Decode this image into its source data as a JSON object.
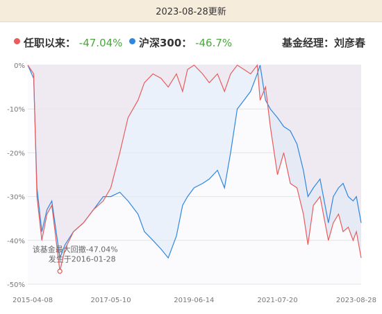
{
  "header": {
    "title": "2023-08-28更新"
  },
  "legend": {
    "fund_label": "任职以来：",
    "fund_value": "-47.04%",
    "index_label": "沪深300：",
    "index_value": "-46.7%",
    "manager": "基金经理：刘彦春"
  },
  "colors": {
    "fund": "#e85c5c",
    "index": "#2f86e0",
    "positive": "#49a83b"
  },
  "chart_data": {
    "type": "line",
    "xlabel": "",
    "ylabel": "",
    "ylim": [
      -50,
      0
    ],
    "yticks": [
      "0%",
      "-10%",
      "-20%",
      "-30%",
      "-40%",
      "-50%"
    ],
    "xticks": [
      "2015-04-08",
      "2017-05-10",
      "2019-06-14",
      "2021-07-20",
      "2023-08-28"
    ],
    "x": [
      "2015-04-08",
      "2015-06-01",
      "2015-07-01",
      "2015-08-15",
      "2015-10-01",
      "2015-11-15",
      "2016-01-28",
      "2016-03-15",
      "2016-06-01",
      "2016-09-01",
      "2016-12-01",
      "2017-03-01",
      "2017-05-10",
      "2017-08-01",
      "2017-10-15",
      "2018-01-15",
      "2018-03-15",
      "2018-06-01",
      "2018-08-15",
      "2018-10-20",
      "2019-01-03",
      "2019-03-01",
      "2019-04-15",
      "2019-06-14",
      "2019-09-01",
      "2019-11-01",
      "2020-01-15",
      "2020-03-20",
      "2020-05-15",
      "2020-07-15",
      "2020-09-15",
      "2020-11-15",
      "2021-01-15",
      "2021-02-10",
      "2021-04-01",
      "2021-05-15",
      "2021-07-20",
      "2021-09-15",
      "2021-11-15",
      "2022-01-15",
      "2022-03-15",
      "2022-04-26",
      "2022-06-15",
      "2022-08-15",
      "2022-10-31",
      "2022-12-15",
      "2023-02-01",
      "2023-03-15",
      "2023-05-01",
      "2023-06-15",
      "2023-07-15",
      "2023-08-28"
    ],
    "series": [
      {
        "name": "任职以来",
        "values": [
          0,
          -2,
          -30,
          -40,
          -34,
          -32,
          -47.04,
          -42,
          -38,
          -36,
          -33,
          -31,
          -28,
          -20,
          -12,
          -8,
          -4,
          -2,
          -3,
          -5,
          -2,
          -6,
          -1,
          0,
          -2,
          -4,
          -2,
          -6,
          -2,
          0,
          -1,
          -2,
          0,
          -8,
          -5,
          -14,
          -25,
          -20,
          -27,
          -28,
          -34,
          -41,
          -32,
          -30,
          -40,
          -36,
          -34,
          -38,
          -37,
          -40,
          -38,
          -44
        ]
      },
      {
        "name": "沪深300",
        "values": [
          0,
          -3,
          -28,
          -38,
          -33,
          -31,
          -44,
          -41,
          -38,
          -36,
          -33,
          -30,
          -30,
          -29,
          -31,
          -34,
          -38,
          -40,
          -42,
          -44,
          -39,
          -32,
          -30,
          -28,
          -27,
          -26,
          -24,
          -28,
          -20,
          -10,
          -8,
          -6,
          -2,
          0,
          -8,
          -10,
          -12,
          -14,
          -15,
          -18,
          -24,
          -30,
          -28,
          -26,
          -36,
          -30,
          -28,
          -27,
          -30,
          -31,
          -30,
          -36
        ]
      }
    ],
    "annotation": {
      "line1": "该基金最大回撤-47.04%",
      "line2": "发生于2016-01-28",
      "value": -47.04,
      "date": "2016-01-28"
    },
    "grid": true,
    "legend_position": "top"
  }
}
